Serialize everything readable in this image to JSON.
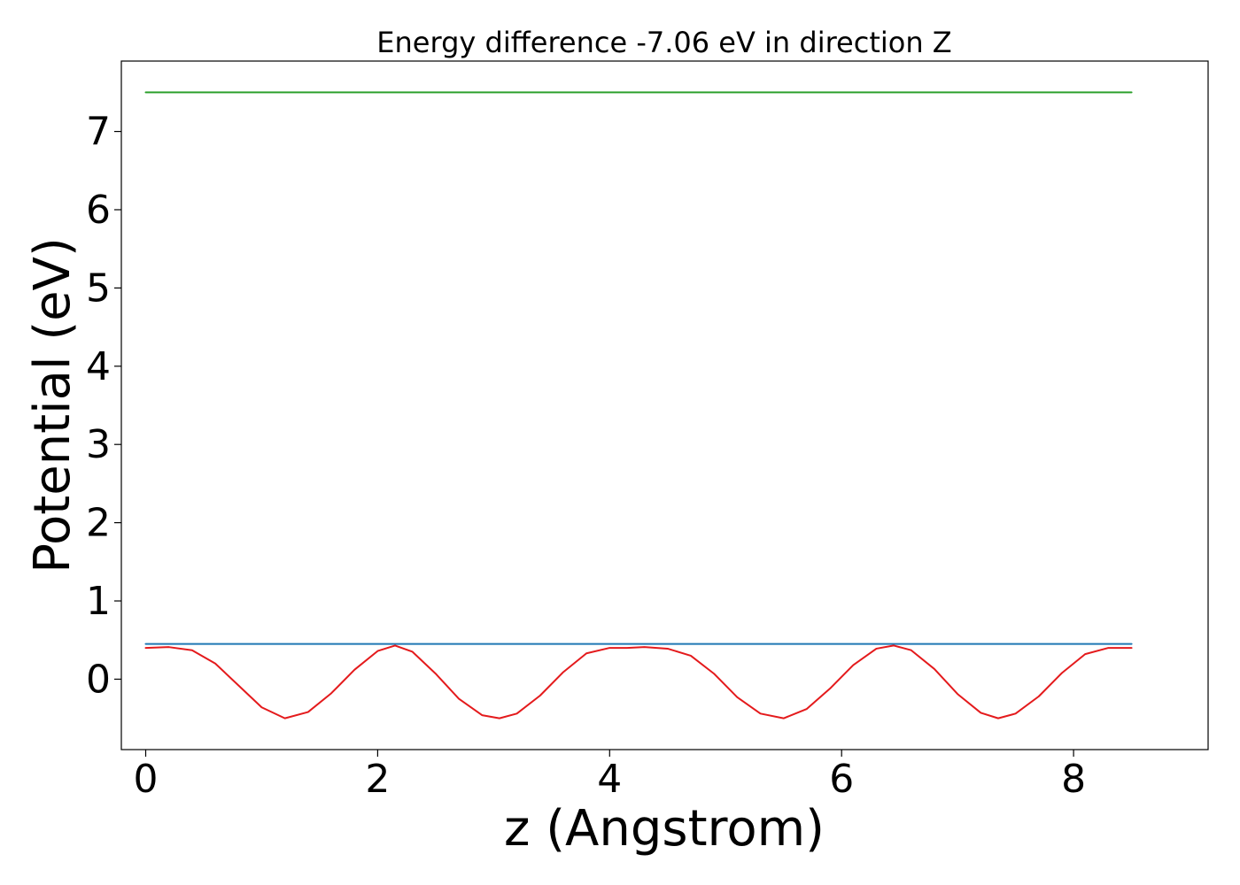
{
  "chart_data": {
    "type": "line",
    "title": "Energy difference -7.06 eV in direction Z",
    "xlabel": "z (Angstrom)",
    "ylabel": "Potential (eV)",
    "xlim": [
      -0.21,
      9.16
    ],
    "ylim": [
      -0.9,
      7.9
    ],
    "xticks": [
      0,
      2,
      4,
      6,
      8
    ],
    "yticks": [
      0,
      1,
      2,
      3,
      4,
      5,
      6,
      7
    ],
    "grid": false,
    "legend": "none",
    "series": [
      {
        "color": "#2ca02c",
        "x": [
          0,
          8.5
        ],
        "y": [
          7.5,
          7.5
        ]
      },
      {
        "color": "#1f77b4",
        "x": [
          0,
          8.5
        ],
        "y": [
          0.45,
          0.45
        ]
      },
      {
        "color": "#e41a1c",
        "x": [
          0,
          0.2,
          0.4,
          0.6,
          0.8,
          1.0,
          1.2,
          1.4,
          1.6,
          1.8,
          2.0,
          2.15,
          2.3,
          2.5,
          2.7,
          2.9,
          3.05,
          3.2,
          3.4,
          3.6,
          3.8,
          4.0,
          4.15,
          4.3,
          4.5,
          4.7,
          4.9,
          5.1,
          5.3,
          5.5,
          5.7,
          5.9,
          6.1,
          6.3,
          6.45,
          6.6,
          6.8,
          7.0,
          7.2,
          7.35,
          7.5,
          7.7,
          7.9,
          8.1,
          8.3,
          8.5
        ],
        "y": [
          0.4,
          0.41,
          0.37,
          0.2,
          -0.08,
          -0.36,
          -0.5,
          -0.42,
          -0.18,
          0.12,
          0.36,
          0.43,
          0.35,
          0.07,
          -0.25,
          -0.46,
          -0.5,
          -0.44,
          -0.21,
          0.09,
          0.33,
          0.4,
          0.4,
          0.41,
          0.39,
          0.3,
          0.07,
          -0.23,
          -0.44,
          -0.5,
          -0.38,
          -0.12,
          0.18,
          0.39,
          0.43,
          0.37,
          0.13,
          -0.19,
          -0.43,
          -0.5,
          -0.44,
          -0.22,
          0.08,
          0.32,
          0.4,
          0.4
        ]
      }
    ]
  }
}
